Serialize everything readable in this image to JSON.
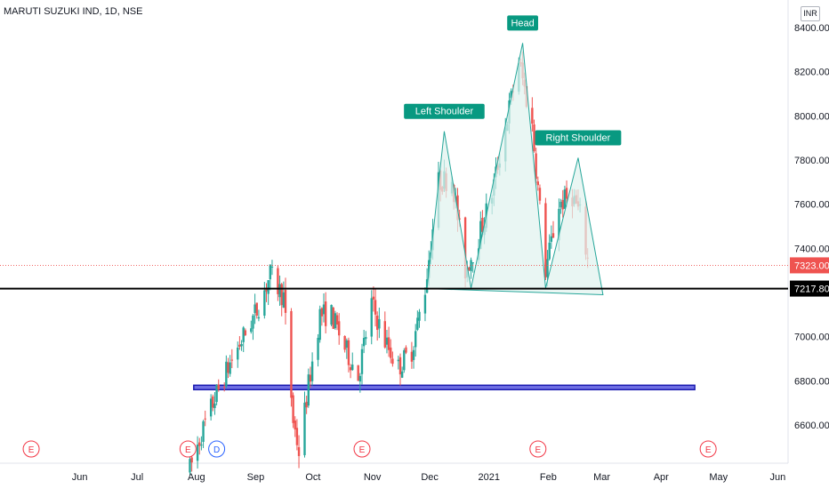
{
  "header": {
    "symbol_title": "MARUTI SUZUKI IND, 1D, NSE",
    "currency_button": "INR"
  },
  "colors": {
    "up": "#26a69a",
    "down": "#ef5350",
    "pattern_fill": "#e0f2ee",
    "pattern_stroke": "#26a69a",
    "label_bg": "#089981",
    "support_band": "#3f3fd9",
    "neckline": "#000000",
    "event_marker": "#f23645",
    "dividend_marker": "#2962ff"
  },
  "chart_data": {
    "type": "candlestick",
    "x_axis_labels": [
      "Jun",
      "Jul",
      "Aug",
      "Sep",
      "Oct",
      "Nov",
      "Dec",
      "2021",
      "Feb",
      "Mar",
      "Apr",
      "May",
      "Jun"
    ],
    "y_axis_ticks": [
      "8400.00",
      "8200.00",
      "8000.00",
      "7800.00",
      "7600.00",
      "7400.00",
      "7000.00",
      "6800.00",
      "6600.00"
    ],
    "ylim": [
      6420,
      8520
    ],
    "last_price_label": "7323.00",
    "last_price": 7323,
    "neckline_label": "7217.80",
    "neckline_price": 7217.8,
    "support_band": {
      "x_from": "2020-08-01",
      "x_to": "2021-04-20",
      "y_low": 6760,
      "y_high": 6780
    },
    "pattern": {
      "name": "Head and Shoulders",
      "points": [
        {
          "date": "2020-12-01",
          "price": 7217.8
        },
        {
          "date": "2020-12-10",
          "price": 7930
        },
        {
          "date": "2020-12-24",
          "price": 7220
        },
        {
          "date": "2021-01-20",
          "price": 8330
        },
        {
          "date": "2021-02-01",
          "price": 7220
        },
        {
          "date": "2021-02-18",
          "price": 7810
        },
        {
          "date": "2021-03-03",
          "price": 7190
        }
      ],
      "labels": [
        {
          "text": "Left Shoulder",
          "date": "2020-12-10",
          "price": 7930
        },
        {
          "text": "Head",
          "date": "2021-01-20",
          "price": 8330
        },
        {
          "text": "Right Shoulder",
          "date": "2021-02-18",
          "price": 7810
        }
      ]
    },
    "events": [
      {
        "label": "E",
        "date": "2020-05-08",
        "kind": "earnings"
      },
      {
        "label": "E",
        "date": "2020-07-29",
        "kind": "earnings"
      },
      {
        "label": "D",
        "date": "2020-08-13",
        "kind": "dividend"
      },
      {
        "label": "E",
        "date": "2020-10-28",
        "kind": "earnings"
      },
      {
        "label": "E",
        "date": "2021-01-28",
        "kind": "earnings"
      },
      {
        "label": "E",
        "date": "2021-04-27",
        "kind": "earnings"
      }
    ],
    "price_path": [
      [
        "2020-07-30",
        6400
      ],
      [
        "2020-08-05",
        6560
      ],
      [
        "2020-08-12",
        6720
      ],
      [
        "2020-08-20",
        6880
      ],
      [
        "2020-08-27",
        7000
      ],
      [
        "2020-09-03",
        7120
      ],
      [
        "2020-09-10",
        7280
      ],
      [
        "2020-09-17",
        7180
      ],
      [
        "2020-09-22",
        6620
      ],
      [
        "2020-09-25",
        6480
      ],
      [
        "2020-09-30",
        6780
      ],
      [
        "2020-10-06",
        7100
      ],
      [
        "2020-10-12",
        7100
      ],
      [
        "2020-10-19",
        6950
      ],
      [
        "2020-10-26",
        6820
      ],
      [
        "2020-11-02",
        7150
      ],
      [
        "2020-11-09",
        6980
      ],
      [
        "2020-11-16",
        6860
      ],
      [
        "2020-11-23",
        6940
      ],
      [
        "2020-11-30",
        7220
      ],
      [
        "2020-12-07",
        7700
      ],
      [
        "2020-12-14",
        7720
      ],
      [
        "2020-12-21",
        7300
      ],
      [
        "2020-12-28",
        7450
      ],
      [
        "2021-01-04",
        7650
      ],
      [
        "2021-01-11",
        7950
      ],
      [
        "2021-01-18",
        8250
      ],
      [
        "2021-01-25",
        7950
      ],
      [
        "2021-02-01",
        7300
      ],
      [
        "2021-02-08",
        7600
      ],
      [
        "2021-02-15",
        7640
      ],
      [
        "2021-02-19",
        7550
      ],
      [
        "2021-02-23",
        7350
      ]
    ]
  }
}
